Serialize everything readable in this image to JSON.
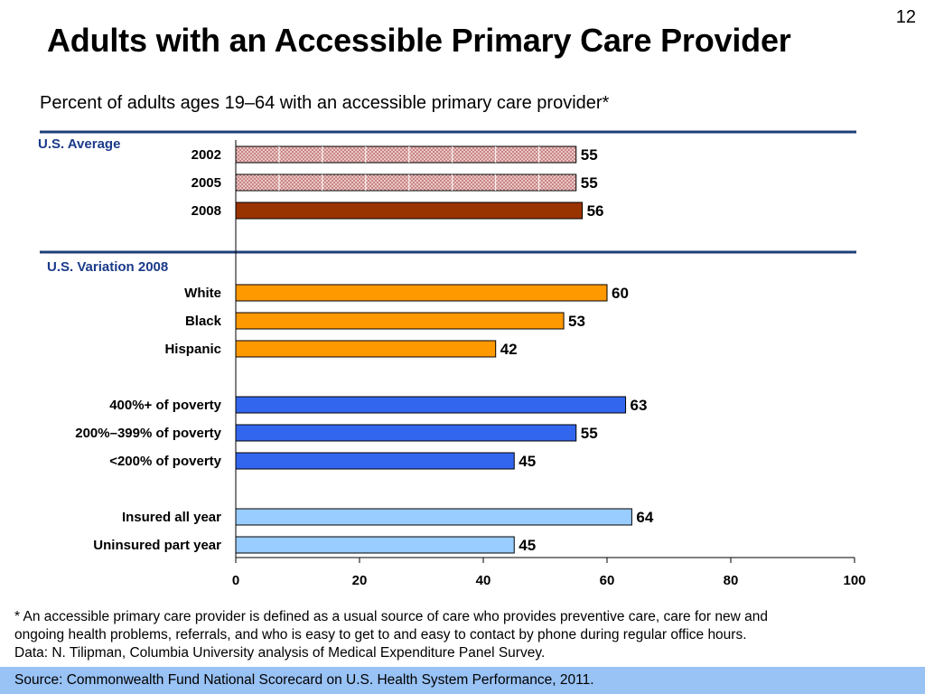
{
  "page_number": "12",
  "title": "Adults with an Accessible Primary Care Provider",
  "subtitle": "Percent of adults ages 19–64 with an accessible primary care provider*",
  "footnote": {
    "line1": "* An accessible primary care provider is defined as a usual source of care who provides preventive care, care for new and",
    "line2": "ongoing health problems, referrals, and who is easy to get to and easy to contact by phone during regular office hours.",
    "line3": "Data: N. Tilipman, Columbia University analysis of Medical Expenditure Panel Survey."
  },
  "source": "Source: Commonwealth Fund National Scorecard on U.S. Health System Performance, 2011.",
  "colors": {
    "section_rule": "#1f3f7a",
    "section_label": "#1a3a8a",
    "us_avg_pattern": "#c88080",
    "us_avg_2008": "#993300",
    "race": "#ff9900",
    "poverty": "#3366ee",
    "insurance": "#99ccff",
    "source_bar": "#99c2f5"
  },
  "chart_data": {
    "type": "bar",
    "orientation": "horizontal",
    "xlim": [
      0,
      100
    ],
    "x_ticks": [
      0,
      20,
      40,
      60,
      80,
      100
    ],
    "sections": [
      {
        "label": "U.S. Average",
        "groups": [
          {
            "bars": [
              {
                "category": "2002",
                "value": 55,
                "style": "hatched"
              },
              {
                "category": "2005",
                "value": 55,
                "style": "hatched"
              },
              {
                "category": "2008",
                "value": 56,
                "style": "solid",
                "color": "#993300"
              }
            ]
          }
        ]
      },
      {
        "label": "U.S. Variation 2008",
        "groups": [
          {
            "color": "#ff9900",
            "bars": [
              {
                "category": "White",
                "value": 60
              },
              {
                "category": "Black",
                "value": 53
              },
              {
                "category": "Hispanic",
                "value": 42
              }
            ]
          },
          {
            "color": "#3366ee",
            "bars": [
              {
                "category": "400%+ of poverty",
                "value": 63
              },
              {
                "category": "200%–399% of poverty",
                "value": 55
              },
              {
                "category": "<200% of poverty",
                "value": 45
              }
            ]
          },
          {
            "color": "#99ccff",
            "bars": [
              {
                "category": "Insured all year",
                "value": 64
              },
              {
                "category": "Uninsured part year",
                "value": 45
              }
            ]
          }
        ]
      }
    ]
  }
}
